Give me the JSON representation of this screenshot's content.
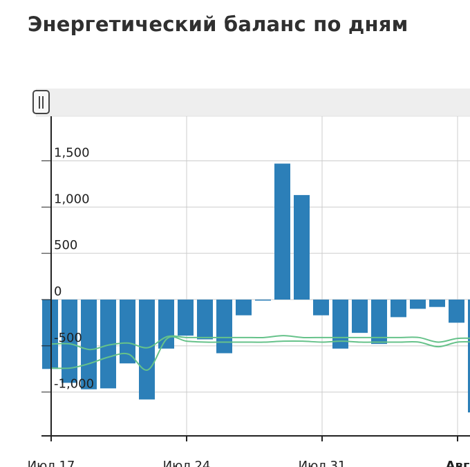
{
  "title": "Энергетический баланс по дням",
  "colors": {
    "bar": "#2c7fb8",
    "line": "#66c28a",
    "grid": "#cccccc",
    "axis": "#222222",
    "scrollbar": "#eeeeee"
  },
  "icons": {
    "scroll_handle": "pause-bars-icon"
  },
  "chart_data": {
    "type": "bar",
    "title": "Энергетический баланс по дням",
    "xlabel": "",
    "ylabel": "",
    "ylim": [
      -1500,
      2000
    ],
    "grid": true,
    "yticks": [
      {
        "value": 1500,
        "label": "1,500"
      },
      {
        "value": 1000,
        "label": "1,000"
      },
      {
        "value": 500,
        "label": "500"
      },
      {
        "value": 0,
        "label": "0"
      },
      {
        "value": -500,
        "label": "-500"
      },
      {
        "value": -1000,
        "label": "-1,000"
      }
    ],
    "xticks": [
      {
        "day": 0,
        "label": "Июл 17",
        "bold": false
      },
      {
        "day": 7,
        "label": "Июл 24",
        "bold": false
      },
      {
        "day": 14,
        "label": "Июл 31",
        "bold": false
      },
      {
        "day": 21,
        "label": "Авг",
        "bold": true
      }
    ],
    "days": [
      0,
      1,
      2,
      3,
      4,
      5,
      6,
      7,
      8,
      9,
      10,
      11,
      12,
      13,
      14,
      15,
      16,
      17,
      18,
      19,
      20,
      21,
      22
    ],
    "values": [
      -750,
      -900,
      -970,
      -960,
      -690,
      -1080,
      -530,
      -390,
      -430,
      -580,
      -170,
      -10,
      1470,
      1130,
      -170,
      -530,
      -360,
      -480,
      -190,
      -100,
      -80,
      -250,
      -1220
    ],
    "series": [
      {
        "type": "line",
        "x": [
          0,
          1,
          2,
          3,
          4,
          5,
          6,
          7,
          8,
          9,
          10,
          11,
          12,
          13,
          14,
          15,
          16,
          17,
          18,
          19,
          20,
          21,
          22
        ],
        "values": [
          -480,
          -480,
          -540,
          -490,
          -470,
          -520,
          -400,
          -410,
          -410,
          -410,
          -410,
          -410,
          -390,
          -410,
          -410,
          -410,
          -410,
          -410,
          -410,
          -410,
          -460,
          -420,
          -420
        ]
      },
      {
        "type": "line",
        "x": [
          0,
          1,
          2,
          3,
          4,
          5,
          6,
          7,
          8,
          9,
          10,
          11,
          12,
          13,
          14,
          15,
          16,
          17,
          18,
          19,
          20,
          21,
          22
        ],
        "values": [
          -740,
          -740,
          -690,
          -620,
          -590,
          -760,
          -420,
          -450,
          -460,
          -460,
          -460,
          -460,
          -450,
          -450,
          -460,
          -450,
          -460,
          -460,
          -460,
          -460,
          -510,
          -460,
          -460
        ]
      }
    ]
  }
}
